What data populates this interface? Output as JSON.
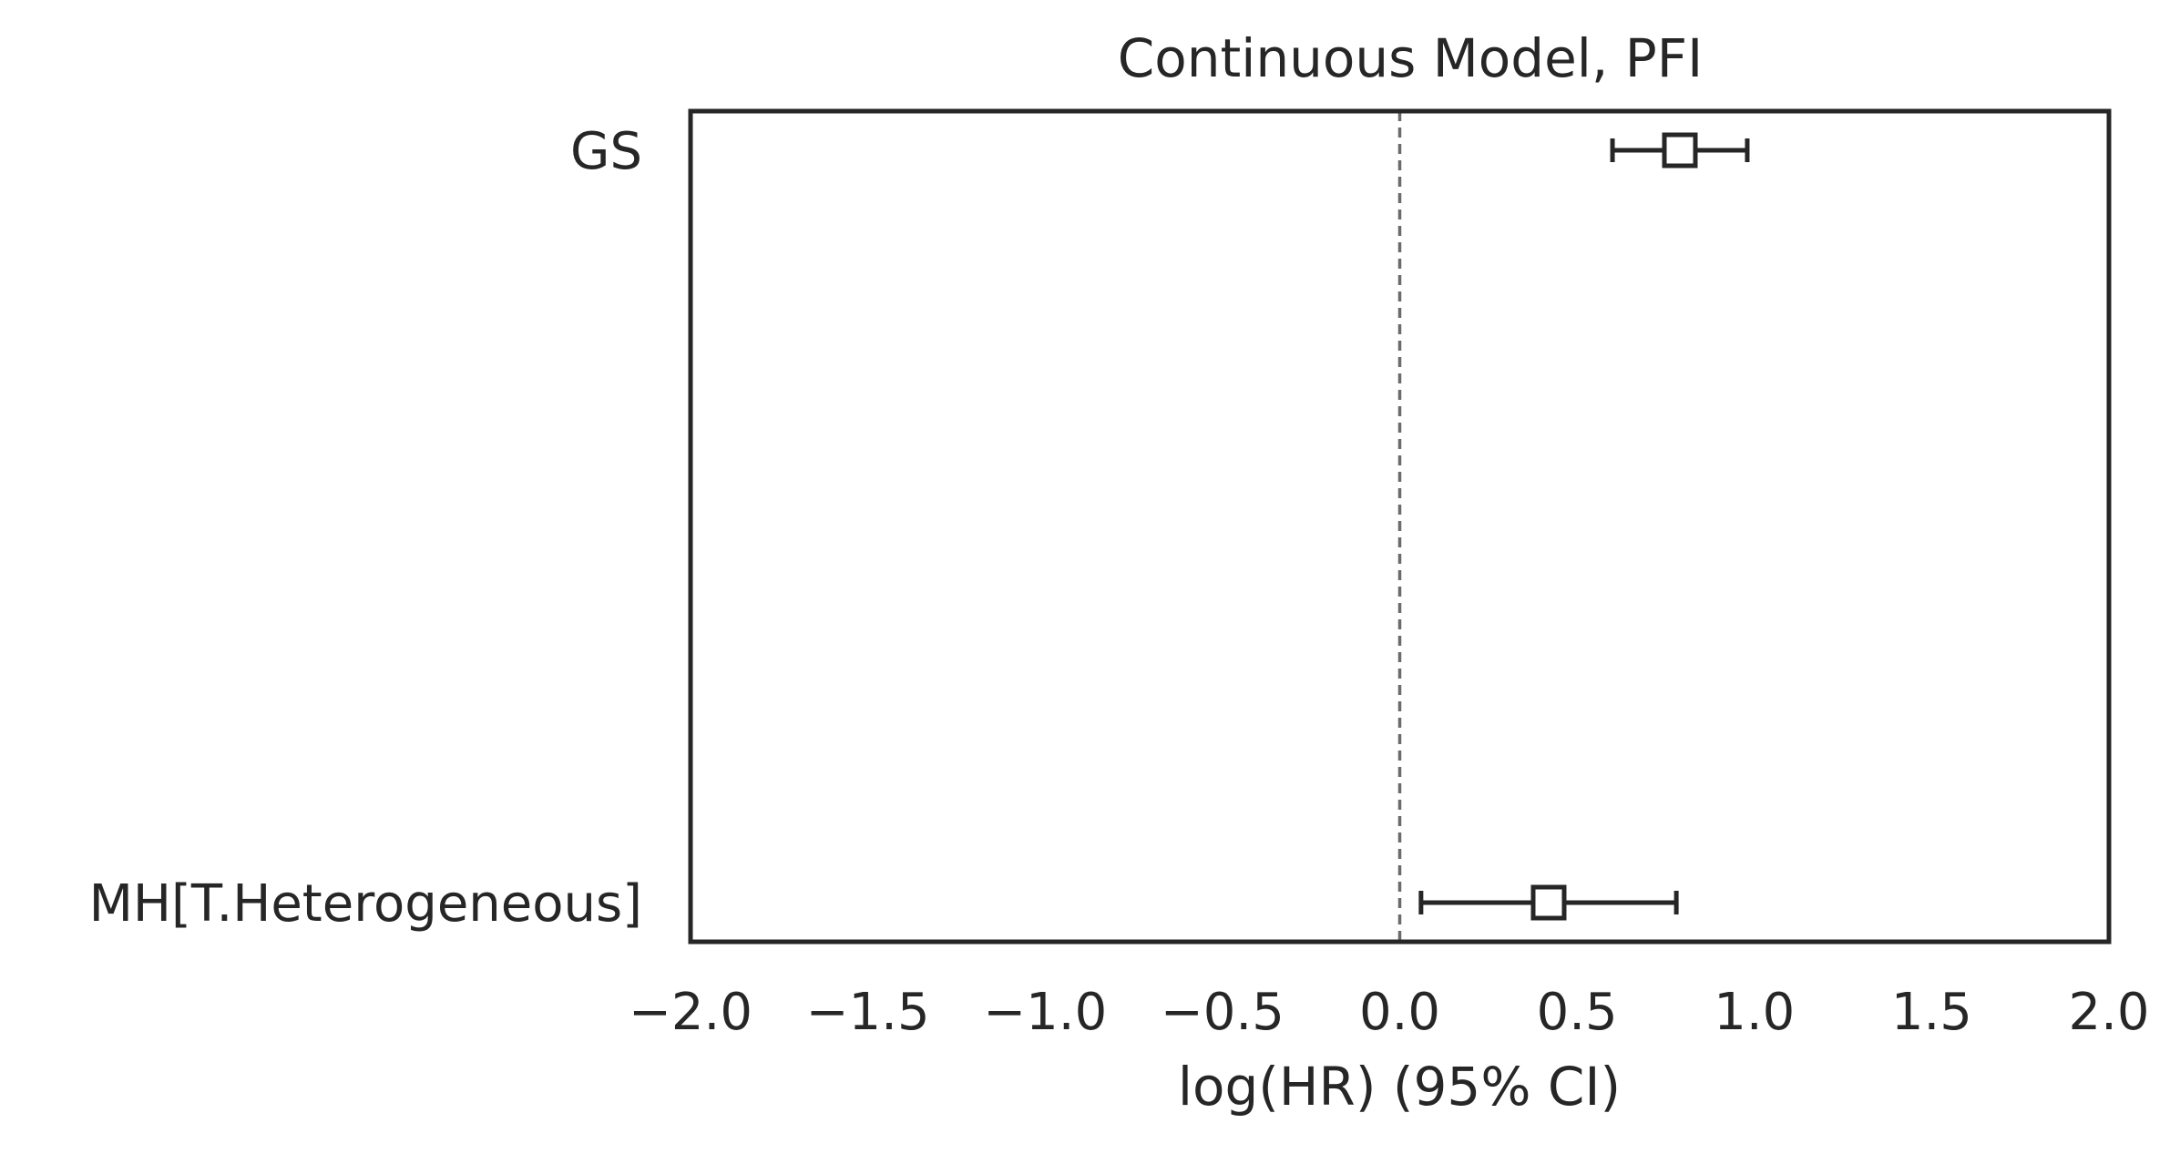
{
  "chart_data": {
    "type": "forest",
    "title": "Continuous Model, PFI",
    "xlabel": "log(HR) (95% CI)",
    "ylabel": "",
    "xlim": [
      -2.0,
      2.0
    ],
    "xticks": [
      -2.0,
      -1.5,
      -1.0,
      -0.5,
      0.0,
      0.5,
      1.0,
      1.5,
      2.0
    ],
    "xtick_labels": [
      "−2.0",
      "−1.5",
      "−1.0",
      "−0.5",
      "0.0",
      "0.5",
      "1.0",
      "1.5",
      "2.0"
    ],
    "reference_line": 0.0,
    "grid": false,
    "rows": [
      {
        "label": "GS",
        "estimate": 0.79,
        "ci_lower": 0.6,
        "ci_upper": 0.98
      },
      {
        "label": "MH[T.Heterogeneous]",
        "estimate": 0.42,
        "ci_lower": 0.06,
        "ci_upper": 0.78
      }
    ],
    "colors": {
      "text": "#262626",
      "frame": "#262626",
      "marker": "#262626",
      "reference": "#6b6b6b",
      "background": "#ffffff"
    }
  }
}
